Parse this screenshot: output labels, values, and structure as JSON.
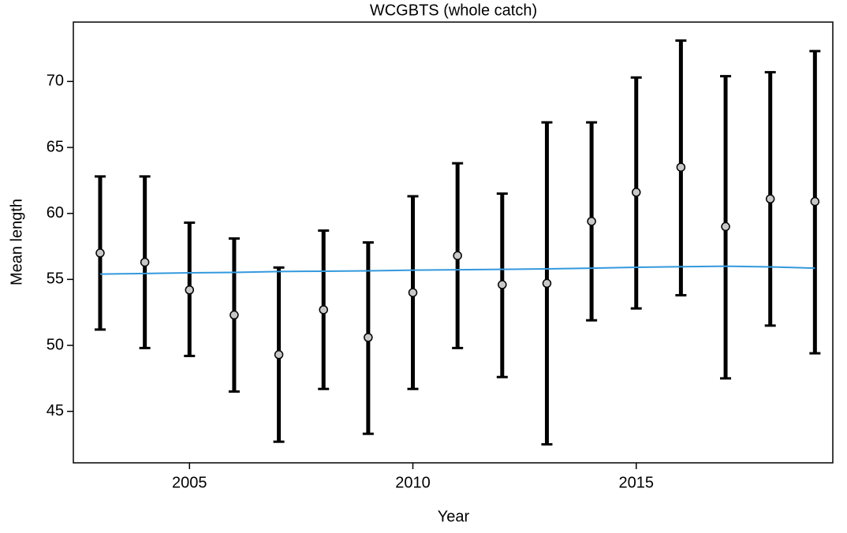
{
  "chart_data": {
    "type": "errorbar",
    "title": "WCGBTS (whole catch)",
    "xlabel": "Year",
    "ylabel": "Mean length",
    "x": [
      2003,
      2004,
      2005,
      2006,
      2007,
      2008,
      2009,
      2010,
      2011,
      2012,
      2013,
      2014,
      2015,
      2016,
      2017,
      2018,
      2019
    ],
    "values": [
      57.0,
      56.3,
      54.2,
      52.3,
      49.3,
      52.7,
      50.6,
      54.0,
      56.8,
      54.6,
      54.7,
      59.4,
      61.6,
      63.5,
      59.0,
      61.1,
      60.9
    ],
    "lower": [
      51.2,
      49.8,
      49.2,
      46.5,
      42.7,
      46.7,
      43.3,
      46.7,
      49.8,
      47.6,
      42.5,
      51.9,
      52.8,
      53.8,
      47.5,
      51.5,
      49.4
    ],
    "upper": [
      62.8,
      62.8,
      59.3,
      58.1,
      55.9,
      58.7,
      57.8,
      61.3,
      63.8,
      61.5,
      66.9,
      66.9,
      70.3,
      73.1,
      70.4,
      70.7,
      72.3
    ],
    "trend": [
      55.4,
      55.45,
      55.5,
      55.53,
      55.6,
      55.62,
      55.65,
      55.7,
      55.73,
      55.76,
      55.8,
      55.85,
      55.92,
      55.96,
      56.0,
      55.95,
      55.85
    ],
    "color": "#000000",
    "point_color": "#c8c8c8",
    "trend_color": "#3399dd",
    "xlim": [
      2002.4,
      2019.4
    ],
    "ylim": [
      41.1,
      74.5
    ],
    "xticks": [
      2005,
      2010,
      2015
    ],
    "yticks": [
      45,
      50,
      55,
      60,
      65,
      70
    ],
    "grid": false
  }
}
